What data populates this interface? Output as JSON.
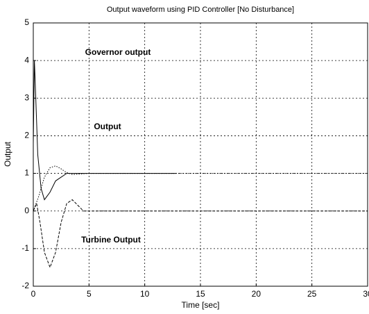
{
  "chart_data": {
    "type": "line",
    "title": "Output waveform using PID Controller [No Disturbance]",
    "x_label": "Time [sec]",
    "y_label": "Output",
    "xlim": [
      0,
      30
    ],
    "xticks": [
      0,
      5,
      10,
      15,
      20,
      25,
      30
    ],
    "ylim": [
      -2,
      5
    ],
    "yticks": [
      -2,
      -1,
      0,
      1,
      2,
      3,
      4,
      5
    ],
    "grid": true,
    "annotations": [
      "Governor output",
      "Output",
      "Turbine Output"
    ],
    "series": [
      {
        "name": "Governor output",
        "color": "#000000",
        "x": [
          0,
          0.1,
          0.2,
          0.4,
          0.7,
          1.0,
          1.5,
          2,
          3,
          4,
          5,
          8,
          12.8
        ],
        "values": [
          1.8,
          4,
          3.2,
          1.5,
          0.6,
          0.3,
          0.5,
          0.8,
          1.0,
          1.0,
          1.0,
          1.0,
          1.0
        ]
      },
      {
        "name": "Output",
        "color": "#000000",
        "x": [
          0,
          0.5,
          1.0,
          1.5,
          2.0,
          2.5,
          3.0,
          3.5,
          4.0,
          5,
          10,
          20,
          30
        ],
        "values": [
          0,
          0.4,
          0.9,
          1.15,
          1.2,
          1.12,
          1.02,
          0.97,
          0.98,
          1.0,
          1.0,
          1.0,
          1.0
        ]
      },
      {
        "name": "Turbine Output",
        "color": "#000000",
        "x": [
          0,
          0.3,
          0.6,
          1.0,
          1.5,
          2.0,
          2.5,
          3.0,
          3.5,
          4.0,
          4.5,
          5,
          10,
          20,
          30
        ],
        "values": [
          0,
          0.2,
          -0.3,
          -1.1,
          -1.5,
          -1.1,
          -0.3,
          0.2,
          0.3,
          0.15,
          0.0,
          0,
          0,
          0,
          0
        ]
      }
    ]
  }
}
